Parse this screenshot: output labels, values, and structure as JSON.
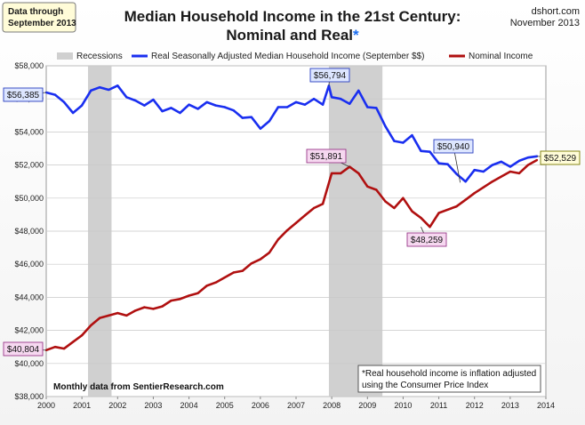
{
  "header": {
    "corner_left": [
      "Data through",
      "September 2013"
    ],
    "corner_right": [
      "dshort.com",
      "November 2013"
    ],
    "title_line1": "Median Household Income in the 21st Century:",
    "title_line2": "Nominal and Real",
    "title_asterisk": "*"
  },
  "footer": {
    "source": "Monthly data from SentierResearch.com",
    "note_line1": "*Real household  income is inflation adjusted",
    "note_line2": "using  the Consumer Price Index"
  },
  "colors": {
    "real": "#1a2ff0",
    "nominal": "#b01010",
    "recession": "#d0d0d0"
  },
  "chart_data": {
    "type": "line",
    "xlim": [
      2000,
      2014
    ],
    "ylim": [
      38000,
      58000
    ],
    "x_ticks": [
      2000,
      2001,
      2002,
      2003,
      2004,
      2005,
      2006,
      2007,
      2008,
      2009,
      2010,
      2011,
      2012,
      2013,
      2014
    ],
    "x_tick_labels": [
      "2000",
      "2001",
      "2002",
      "2003",
      "2004",
      "2005",
      "2006",
      "2007",
      "2008",
      "2009",
      "2010",
      "2011",
      "2012",
      "2013",
      "2014"
    ],
    "y_ticks": [
      38000,
      40000,
      42000,
      44000,
      46000,
      48000,
      50000,
      52000,
      54000,
      56000,
      58000
    ],
    "y_tick_labels": [
      "$38,000",
      "$40,000",
      "$42,000",
      "$44,000",
      "$46,000",
      "$48,000",
      "$50,000",
      "$52,000",
      "$54,000",
      "$56,000",
      "$58,000"
    ],
    "grid": true,
    "legend": [
      "Recessions",
      "Real Seasonally Adjusted Median Household Income (September $$)",
      "Nominal Income"
    ],
    "legend_position": "top",
    "recessions": [
      [
        2001.17,
        2001.83
      ],
      [
        2007.92,
        2009.42
      ]
    ],
    "series": [
      {
        "name": "Real Seasonally Adjusted Median Household Income (September $$)",
        "x": [
          2000.0,
          2000.25,
          2000.5,
          2000.75,
          2001.0,
          2001.25,
          2001.5,
          2001.75,
          2002.0,
          2002.25,
          2002.5,
          2002.75,
          2003.0,
          2003.25,
          2003.5,
          2003.75,
          2004.0,
          2004.25,
          2004.5,
          2004.75,
          2005.0,
          2005.25,
          2005.5,
          2005.75,
          2006.0,
          2006.25,
          2006.5,
          2006.75,
          2007.0,
          2007.25,
          2007.5,
          2007.75,
          2007.92,
          2008.0,
          2008.25,
          2008.5,
          2008.75,
          2009.0,
          2009.25,
          2009.5,
          2009.75,
          2010.0,
          2010.25,
          2010.5,
          2010.75,
          2011.0,
          2011.25,
          2011.5,
          2011.75,
          2012.0,
          2012.25,
          2012.5,
          2012.75,
          2013.0,
          2013.25,
          2013.5,
          2013.75
        ],
        "values": [
          56385,
          56250,
          55800,
          55150,
          55600,
          56500,
          56700,
          56550,
          56800,
          56100,
          55900,
          55600,
          55950,
          55250,
          55450,
          55150,
          55650,
          55400,
          55800,
          55600,
          55500,
          55300,
          54850,
          54900,
          54200,
          54650,
          55500,
          55500,
          55800,
          55650,
          56000,
          55650,
          56794,
          56100,
          56000,
          55700,
          56500,
          55500,
          55450,
          54350,
          53450,
          53350,
          53800,
          52850,
          52800,
          52100,
          52050,
          51450,
          51000,
          51700,
          51600,
          52000,
          52200,
          51900,
          52250,
          52450,
          52529
        ]
      },
      {
        "name": "Nominal Income",
        "x": [
          2000.0,
          2000.25,
          2000.5,
          2000.75,
          2001.0,
          2001.25,
          2001.5,
          2001.75,
          2002.0,
          2002.25,
          2002.5,
          2002.75,
          2003.0,
          2003.25,
          2003.5,
          2003.75,
          2004.0,
          2004.25,
          2004.5,
          2004.75,
          2005.0,
          2005.25,
          2005.5,
          2005.75,
          2006.0,
          2006.25,
          2006.5,
          2006.75,
          2007.0,
          2007.25,
          2007.5,
          2007.75,
          2008.0,
          2008.25,
          2008.5,
          2008.75,
          2009.0,
          2009.25,
          2009.5,
          2009.75,
          2010.0,
          2010.25,
          2010.5,
          2010.75,
          2011.0,
          2011.25,
          2011.5,
          2011.75,
          2012.0,
          2012.25,
          2012.5,
          2012.75,
          2013.0,
          2013.25,
          2013.5,
          2013.75
        ],
        "values": [
          40804,
          41000,
          40900,
          41300,
          41700,
          42300,
          42750,
          42900,
          43050,
          42900,
          43200,
          43400,
          43300,
          43450,
          43800,
          43900,
          44100,
          44250,
          44700,
          44900,
          45200,
          45500,
          45600,
          46050,
          46300,
          46700,
          47500,
          48050,
          48500,
          48950,
          49400,
          49650,
          51500,
          51500,
          51891,
          51500,
          50700,
          50500,
          49800,
          49400,
          50000,
          49200,
          48800,
          48259,
          49100,
          49300,
          49500,
          49900,
          50300,
          50650,
          51000,
          51300,
          51600,
          51500,
          52000,
          52300
        ]
      }
    ],
    "annotations": [
      {
        "text": "$56,385",
        "x": 2000.0,
        "y": 56385,
        "series": "real"
      },
      {
        "text": "$56,794",
        "x": 2007.92,
        "y": 56794,
        "series": "real"
      },
      {
        "text": "$50,940",
        "x": 2011.6,
        "y": 50940,
        "series": "real"
      },
      {
        "text": "$52,529",
        "x": 2013.75,
        "y": 52529,
        "series": "real"
      },
      {
        "text": "$40,804",
        "x": 2000.0,
        "y": 40804,
        "series": "nominal"
      },
      {
        "text": "$51,891",
        "x": 2008.5,
        "y": 51891,
        "series": "nominal"
      },
      {
        "text": "$48,259",
        "x": 2010.5,
        "y": 48259,
        "series": "nominal"
      }
    ]
  }
}
